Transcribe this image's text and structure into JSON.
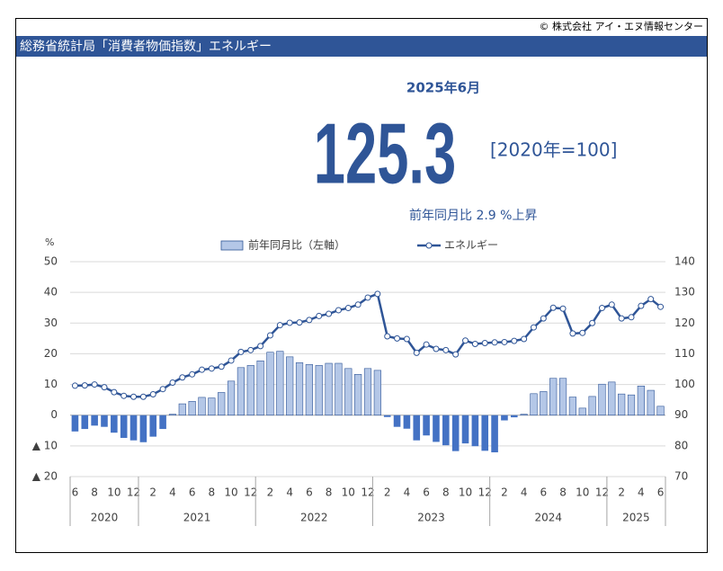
{
  "chart_data": {
    "type": "bar_line",
    "copyright": "© 株式会社 アイ・エヌ情報センター",
    "title": "総務省統計局「消費者物価指数」エネルギー",
    "period": "2025年6月",
    "headline_value": "125.3",
    "base": "[2020年=100]",
    "change_text": "前年同月比 2.9 %上昇",
    "y_unit": "%",
    "categories": [
      "6",
      null,
      "8",
      null,
      "10",
      null,
      "12",
      null,
      "2",
      null,
      "4",
      null,
      "6",
      null,
      "8",
      null,
      "10",
      null,
      "12",
      null,
      "2",
      null,
      "4",
      null,
      "6",
      null,
      "8",
      null,
      "10",
      null,
      "12",
      null,
      "2",
      null,
      "4",
      null,
      "6",
      null,
      "8",
      null,
      "10",
      null,
      "12",
      null,
      "2",
      null,
      "4",
      null,
      "6",
      null,
      "8",
      null,
      "10",
      null,
      "12",
      null,
      "2",
      null,
      "4",
      null,
      "6"
    ],
    "years": [
      "2020",
      "2021",
      "2022",
      "2023",
      "2024",
      "2025"
    ],
    "series": [
      {
        "name": "前年同月比（左軸）",
        "type": "bar",
        "color": "#b4c7e7",
        "negative_color": "#4472c4",
        "values": [
          -5.3,
          -4.5,
          -3.4,
          -3.8,
          -5.7,
          -7.4,
          -8.2,
          -8.8,
          -7.0,
          -4.5,
          0.3,
          3.7,
          4.5,
          5.8,
          5.6,
          7.4,
          11.1,
          15.5,
          16.2,
          17.7,
          20.5,
          20.8,
          19.0,
          17.1,
          16.5,
          16.2,
          16.9,
          16.9,
          15.2,
          13.3,
          15.2,
          14.6,
          -0.6,
          -3.8,
          -4.4,
          -8.2,
          -6.6,
          -8.7,
          -9.8,
          -11.7,
          -9.2,
          -10.1,
          -11.6,
          -12.1,
          -1.7,
          -0.7,
          0.3,
          7.0,
          7.7,
          12.0,
          12.0,
          5.9,
          2.3,
          6.1,
          10.1,
          10.8,
          6.9,
          6.6,
          9.5,
          8.1,
          2.9
        ]
      },
      {
        "name": "エネルギー",
        "type": "line",
        "axis": "y2",
        "color": "#2f5597",
        "values": [
          99.6,
          99.7,
          100,
          99.1,
          97.5,
          96.3,
          96.0,
          96.0,
          96.8,
          98.5,
          100.6,
          102.3,
          103.3,
          104.8,
          105.2,
          105.8,
          107.8,
          110.6,
          111.2,
          112.5,
          116,
          119.3,
          120.1,
          120.2,
          121.0,
          122.3,
          123.0,
          124.2,
          124.9,
          126.0,
          128.3,
          129.5,
          115.7,
          115.0,
          114.8,
          110.3,
          113.0,
          111.6,
          111.2,
          109.8,
          114.3,
          113.2,
          113.5,
          113.7,
          113.8,
          114.2,
          114.8,
          118.6,
          121.5,
          125.0,
          124.7,
          116.6,
          116.8,
          120.0,
          124.9,
          126.0,
          121.5,
          121.9,
          125.6,
          127.8,
          125.3
        ]
      }
    ],
    "ylim": [
      -20,
      50
    ],
    "yticks": [
      {
        "value": -20,
        "label": "▲ 20"
      },
      {
        "value": -10,
        "label": "▲ 10"
      },
      0,
      10,
      20,
      30,
      40,
      50
    ],
    "y2lim": [
      70,
      140
    ],
    "y2ticks": [
      70,
      80,
      90,
      100,
      110,
      120,
      130,
      140
    ],
    "grid": true
  }
}
